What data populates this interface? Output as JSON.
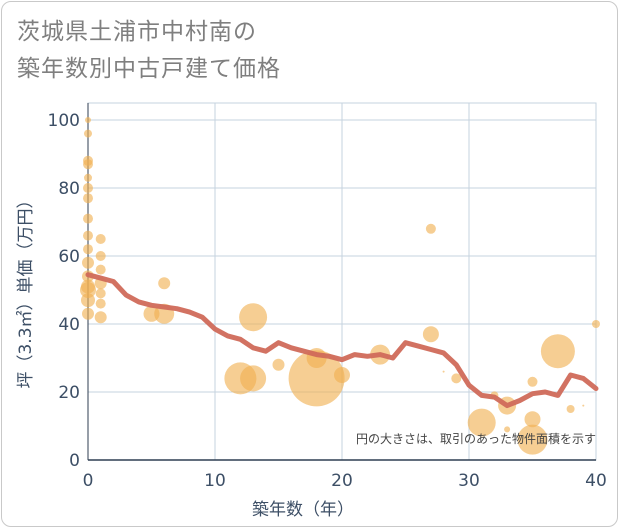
{
  "title_line1": "茨城県土浦市中村南の",
  "title_line2": "築年数別中古戸建て価格",
  "note": "円の大きさは、取引のあった物件面積を示す",
  "colors": {
    "bubble": "#f0b050",
    "line": "#d06a5a",
    "grid": "#c5d3df",
    "axis_text": "#3d4f66"
  },
  "chart_data": {
    "type": "scatter",
    "xlabel": "築年数（年）",
    "ylabel": "坪（3.3㎡）単価（万円）",
    "xlim": [
      0,
      40
    ],
    "ylim": [
      0,
      105
    ],
    "xticks": [
      0,
      10,
      20,
      30,
      40
    ],
    "yticks": [
      0,
      20,
      40,
      60,
      80,
      100
    ],
    "points": [
      {
        "x": 0,
        "y": 100,
        "s": 3
      },
      {
        "x": 0,
        "y": 96,
        "s": 4
      },
      {
        "x": 0,
        "y": 88,
        "s": 5
      },
      {
        "x": 0,
        "y": 87,
        "s": 5
      },
      {
        "x": 0,
        "y": 83,
        "s": 4
      },
      {
        "x": 0,
        "y": 80,
        "s": 5
      },
      {
        "x": 0,
        "y": 77,
        "s": 5
      },
      {
        "x": 0,
        "y": 71,
        "s": 5
      },
      {
        "x": 0,
        "y": 66,
        "s": 5
      },
      {
        "x": 0,
        "y": 62,
        "s": 5
      },
      {
        "x": 0,
        "y": 58,
        "s": 6
      },
      {
        "x": 0,
        "y": 54,
        "s": 6
      },
      {
        "x": 0,
        "y": 51,
        "s": 7
      },
      {
        "x": 0,
        "y": 50,
        "s": 8
      },
      {
        "x": 0,
        "y": 47,
        "s": 7
      },
      {
        "x": 0,
        "y": 43,
        "s": 6
      },
      {
        "x": 1,
        "y": 65,
        "s": 5
      },
      {
        "x": 1,
        "y": 60,
        "s": 5
      },
      {
        "x": 1,
        "y": 56,
        "s": 5
      },
      {
        "x": 1,
        "y": 52,
        "s": 6
      },
      {
        "x": 1,
        "y": 49,
        "s": 5
      },
      {
        "x": 1,
        "y": 46,
        "s": 5
      },
      {
        "x": 1,
        "y": 42,
        "s": 6
      },
      {
        "x": 6,
        "y": 52,
        "s": 6
      },
      {
        "x": 5,
        "y": 43,
        "s": 8
      },
      {
        "x": 6,
        "y": 43,
        "s": 10
      },
      {
        "x": 13,
        "y": 42,
        "s": 14
      },
      {
        "x": 12,
        "y": 24,
        "s": 16
      },
      {
        "x": 13,
        "y": 24,
        "s": 13
      },
      {
        "x": 15,
        "y": 28,
        "s": 6
      },
      {
        "x": 18,
        "y": 24,
        "s": 28
      },
      {
        "x": 18,
        "y": 30,
        "s": 10
      },
      {
        "x": 20,
        "y": 25,
        "s": 8
      },
      {
        "x": 23,
        "y": 31,
        "s": 10
      },
      {
        "x": 27,
        "y": 68,
        "s": 5
      },
      {
        "x": 27,
        "y": 37,
        "s": 8
      },
      {
        "x": 28,
        "y": 26,
        "s": 1
      },
      {
        "x": 29,
        "y": 24,
        "s": 5
      },
      {
        "x": 31,
        "y": 11,
        "s": 14
      },
      {
        "x": 32,
        "y": 19,
        "s": 4
      },
      {
        "x": 33,
        "y": 16,
        "s": 9
      },
      {
        "x": 33,
        "y": 9,
        "s": 3
      },
      {
        "x": 35,
        "y": 23,
        "s": 5
      },
      {
        "x": 35,
        "y": 12,
        "s": 8
      },
      {
        "x": 35,
        "y": 6,
        "s": 15
      },
      {
        "x": 37,
        "y": 32,
        "s": 17
      },
      {
        "x": 38,
        "y": 15,
        "s": 4
      },
      {
        "x": 39,
        "y": 16,
        "s": 1
      },
      {
        "x": 40,
        "y": 40,
        "s": 4
      }
    ],
    "trend_line": {
      "x": [
        0,
        1,
        2,
        3,
        4,
        5,
        6,
        7,
        8,
        9,
        10,
        11,
        12,
        13,
        14,
        15,
        16,
        17,
        18,
        19,
        20,
        21,
        22,
        23,
        24,
        25,
        26,
        27,
        28,
        29,
        30,
        31,
        32,
        33,
        34,
        35,
        36,
        37,
        38,
        39,
        40
      ],
      "y": [
        54.5,
        53.5,
        52.5,
        48.5,
        46.5,
        45.5,
        45,
        44.5,
        43.5,
        42,
        38.5,
        36.5,
        35.5,
        33,
        32,
        34.5,
        33,
        32,
        31,
        30.5,
        29.5,
        31,
        30.5,
        31,
        30,
        34.5,
        33.5,
        32.5,
        31.5,
        28,
        22,
        19,
        18.5,
        16,
        17.5,
        19.5,
        20,
        19,
        25,
        24,
        21
      ]
    }
  }
}
